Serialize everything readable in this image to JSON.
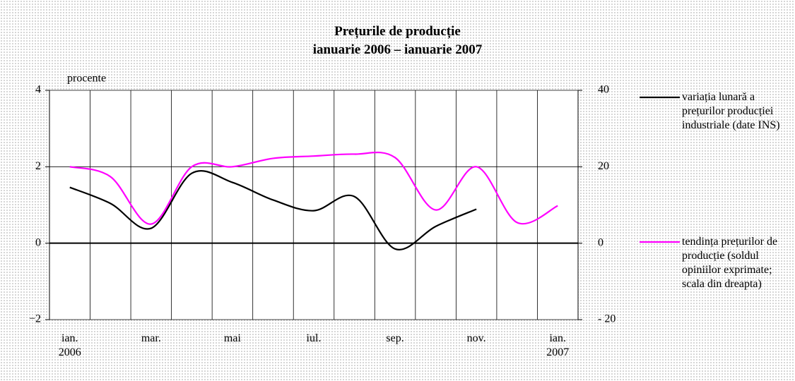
{
  "chart_data": {
    "type": "line",
    "title": "Prețurile de producție",
    "subtitle": "ianuarie 2006 – ianuarie 2007",
    "y_label": "procente",
    "categories": [
      "ian. 2006",
      null,
      "mar.",
      null,
      "mai",
      null,
      "iul.",
      null,
      "sep.",
      null,
      "nov.",
      null,
      "ian. 2007"
    ],
    "series": [
      {
        "name": "variația lunară a prețurilor producției industriale (date INS)",
        "color": "#000000",
        "values": [
          1.46,
          1.04,
          0.39,
          1.83,
          1.59,
          1.13,
          0.85,
          1.22,
          -0.15,
          0.44,
          0.89,
          null,
          null
        ]
      },
      {
        "name": "tendința prețurilor de producție (soldul opiniilor exprimate; scala din dreapta)",
        "color": "#ff00ff",
        "axis": "y2",
        "values": [
          20,
          17.4,
          5,
          20,
          20,
          22.2,
          22.8,
          23.3,
          22.4,
          8.7,
          20,
          5.4,
          9.8
        ]
      }
    ],
    "ylim": [
      -2,
      4
    ],
    "yticks": [
      {
        "value": -2,
        "label": "−2"
      },
      0,
      2,
      4
    ],
    "y2lim": [
      -20,
      40
    ],
    "y2ticks": [
      {
        "value": -20,
        "label": "- 20"
      },
      0,
      20,
      40
    ],
    "grid": true,
    "legend": "right"
  }
}
